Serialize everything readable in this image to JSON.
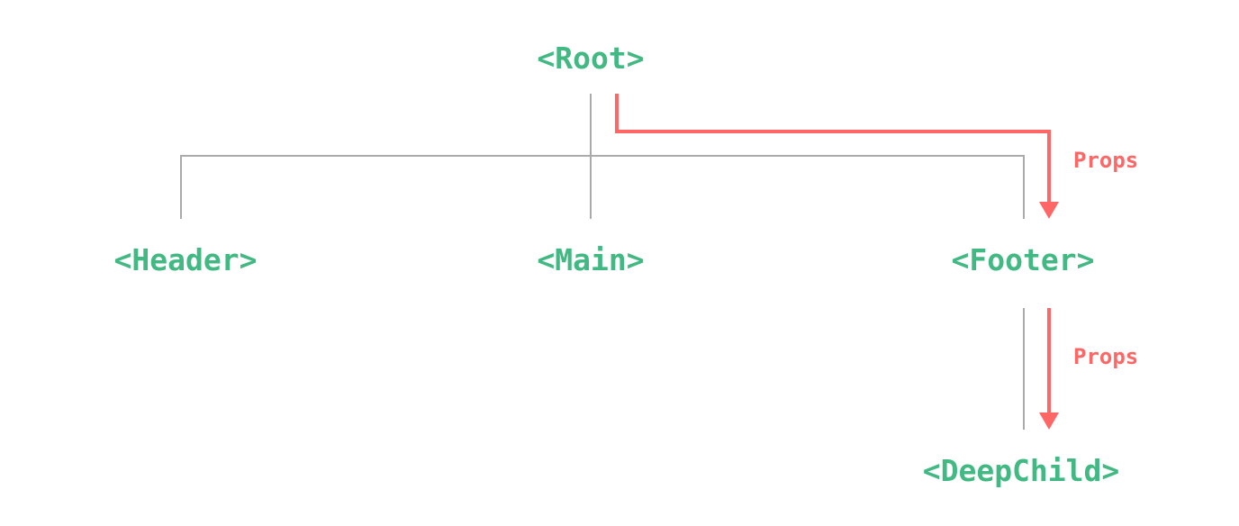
{
  "colors": {
    "component": "#42b883",
    "props": "#ff6666",
    "tree_line": "#aaaaaa"
  },
  "nodes": {
    "root": "<Root>",
    "header": "<Header>",
    "main": "<Main>",
    "footer": "<Footer>",
    "deep_child": "<DeepChild>"
  },
  "edges": {
    "props_root_to_footer": "Props",
    "props_footer_to_deepchild": "Props"
  }
}
